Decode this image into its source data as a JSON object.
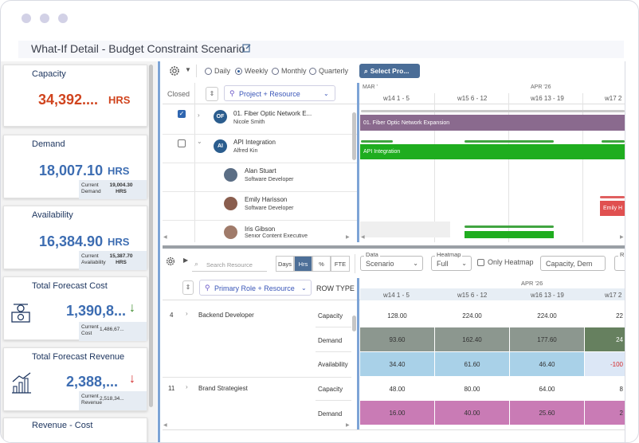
{
  "window": {
    "title": "What-If Detail - Budget Constraint Scenario"
  },
  "cards": [
    {
      "title": "Capacity",
      "value": "34,392....",
      "unit": "HRS"
    },
    {
      "title": "Demand",
      "value": "18,007.10",
      "unit": "HRS",
      "sub_label": "Current Demand",
      "sub_value": "19,004.30 HRS"
    },
    {
      "title": "Availability",
      "value": "16,384.90",
      "unit": "HRS",
      "sub_label": "Current Availability",
      "sub_value": "15,387.70 HRS"
    },
    {
      "title": "Total Forecast Cost",
      "value": "1,390,8...",
      "sub_label": "Current Cost",
      "sub_value": "1,486,67..."
    },
    {
      "title": "Total Forecast Revenue",
      "value": "2,388,...",
      "sub_label": "Current Revenue",
      "sub_value": "2,518,34..."
    },
    {
      "title": "Revenue - Cost"
    }
  ],
  "colors": {
    "capacity": "#d0441e",
    "value_blue": "#3d6db2",
    "down_green": "#3a8a2a",
    "down_red": "#d42a2a",
    "accent": "#4a6d97"
  },
  "toolbar": {
    "modes": [
      "Daily",
      "Weekly",
      "Monthly",
      "Quarterly"
    ],
    "selected_mode": "Weekly",
    "select_button": "Select Pro..."
  },
  "top_grid": {
    "closed_label": "Closed",
    "group_by": "Project + Resource",
    "months": [
      "MAR '",
      "APR '26"
    ],
    "weeks": [
      "w14 1 - 5",
      "w15 6 - 12",
      "w16 13 - 19",
      "w17 2"
    ],
    "rows": [
      {
        "chip": "OF",
        "name": "01. Fiber Optic Network E...",
        "sub": "Nicole Smith",
        "checked": true
      },
      {
        "chip": "AI",
        "name": "API Integration",
        "sub": "Alfred Kin",
        "checked": false
      },
      {
        "name": "Alan Stuart",
        "sub": "Software Developer"
      },
      {
        "name": "Emily Harisson",
        "sub": "Software Developer"
      },
      {
        "name": "Iris Gibson",
        "sub": "Senior Content Executive"
      }
    ],
    "bars": {
      "fiber": "01. Fiber Optic Network Expansion",
      "api": "API Integration",
      "emily": "Emily H"
    }
  },
  "bottom_toolbar": {
    "search_placeholder": "Search Resource",
    "units": [
      "Days",
      "Hrs",
      "%",
      "FTE"
    ],
    "selected_unit": "Hrs",
    "data_label": "Data",
    "data_value": "Scenario",
    "heatmap_label": "Heatmap",
    "heatmap_value": "Full",
    "only_heatmap": "Only Heatmap",
    "capacity_value": "Capacity, Dem",
    "r_label": "R"
  },
  "bottom_grid": {
    "group_by": "Primary Role + Resource",
    "row_type": "ROW TYPE",
    "month": "APR '26",
    "weeks": [
      "w14 1 - 5",
      "w15 6 - 12",
      "w16 13 - 19",
      "w17 2"
    ],
    "roles": [
      {
        "id": "4",
        "name": "Backend Developer",
        "rows": [
          {
            "type": "Capacity",
            "values": [
              "128.00",
              "224.00",
              "224.00",
              "22"
            ]
          },
          {
            "type": "Demand",
            "values": [
              "93.60",
              "162.40",
              "177.60",
              "24"
            ]
          },
          {
            "type": "Availability",
            "values": [
              "34.40",
              "61.60",
              "46.40",
              "-100"
            ]
          }
        ]
      },
      {
        "id": "11",
        "name": "Brand Strategiest",
        "rows": [
          {
            "type": "Capacity",
            "values": [
              "48.00",
              "80.00",
              "64.00",
              "8"
            ]
          },
          {
            "type": "Demand",
            "values": [
              "16.00",
              "40.00",
              "25.60",
              "2"
            ]
          }
        ]
      }
    ]
  }
}
